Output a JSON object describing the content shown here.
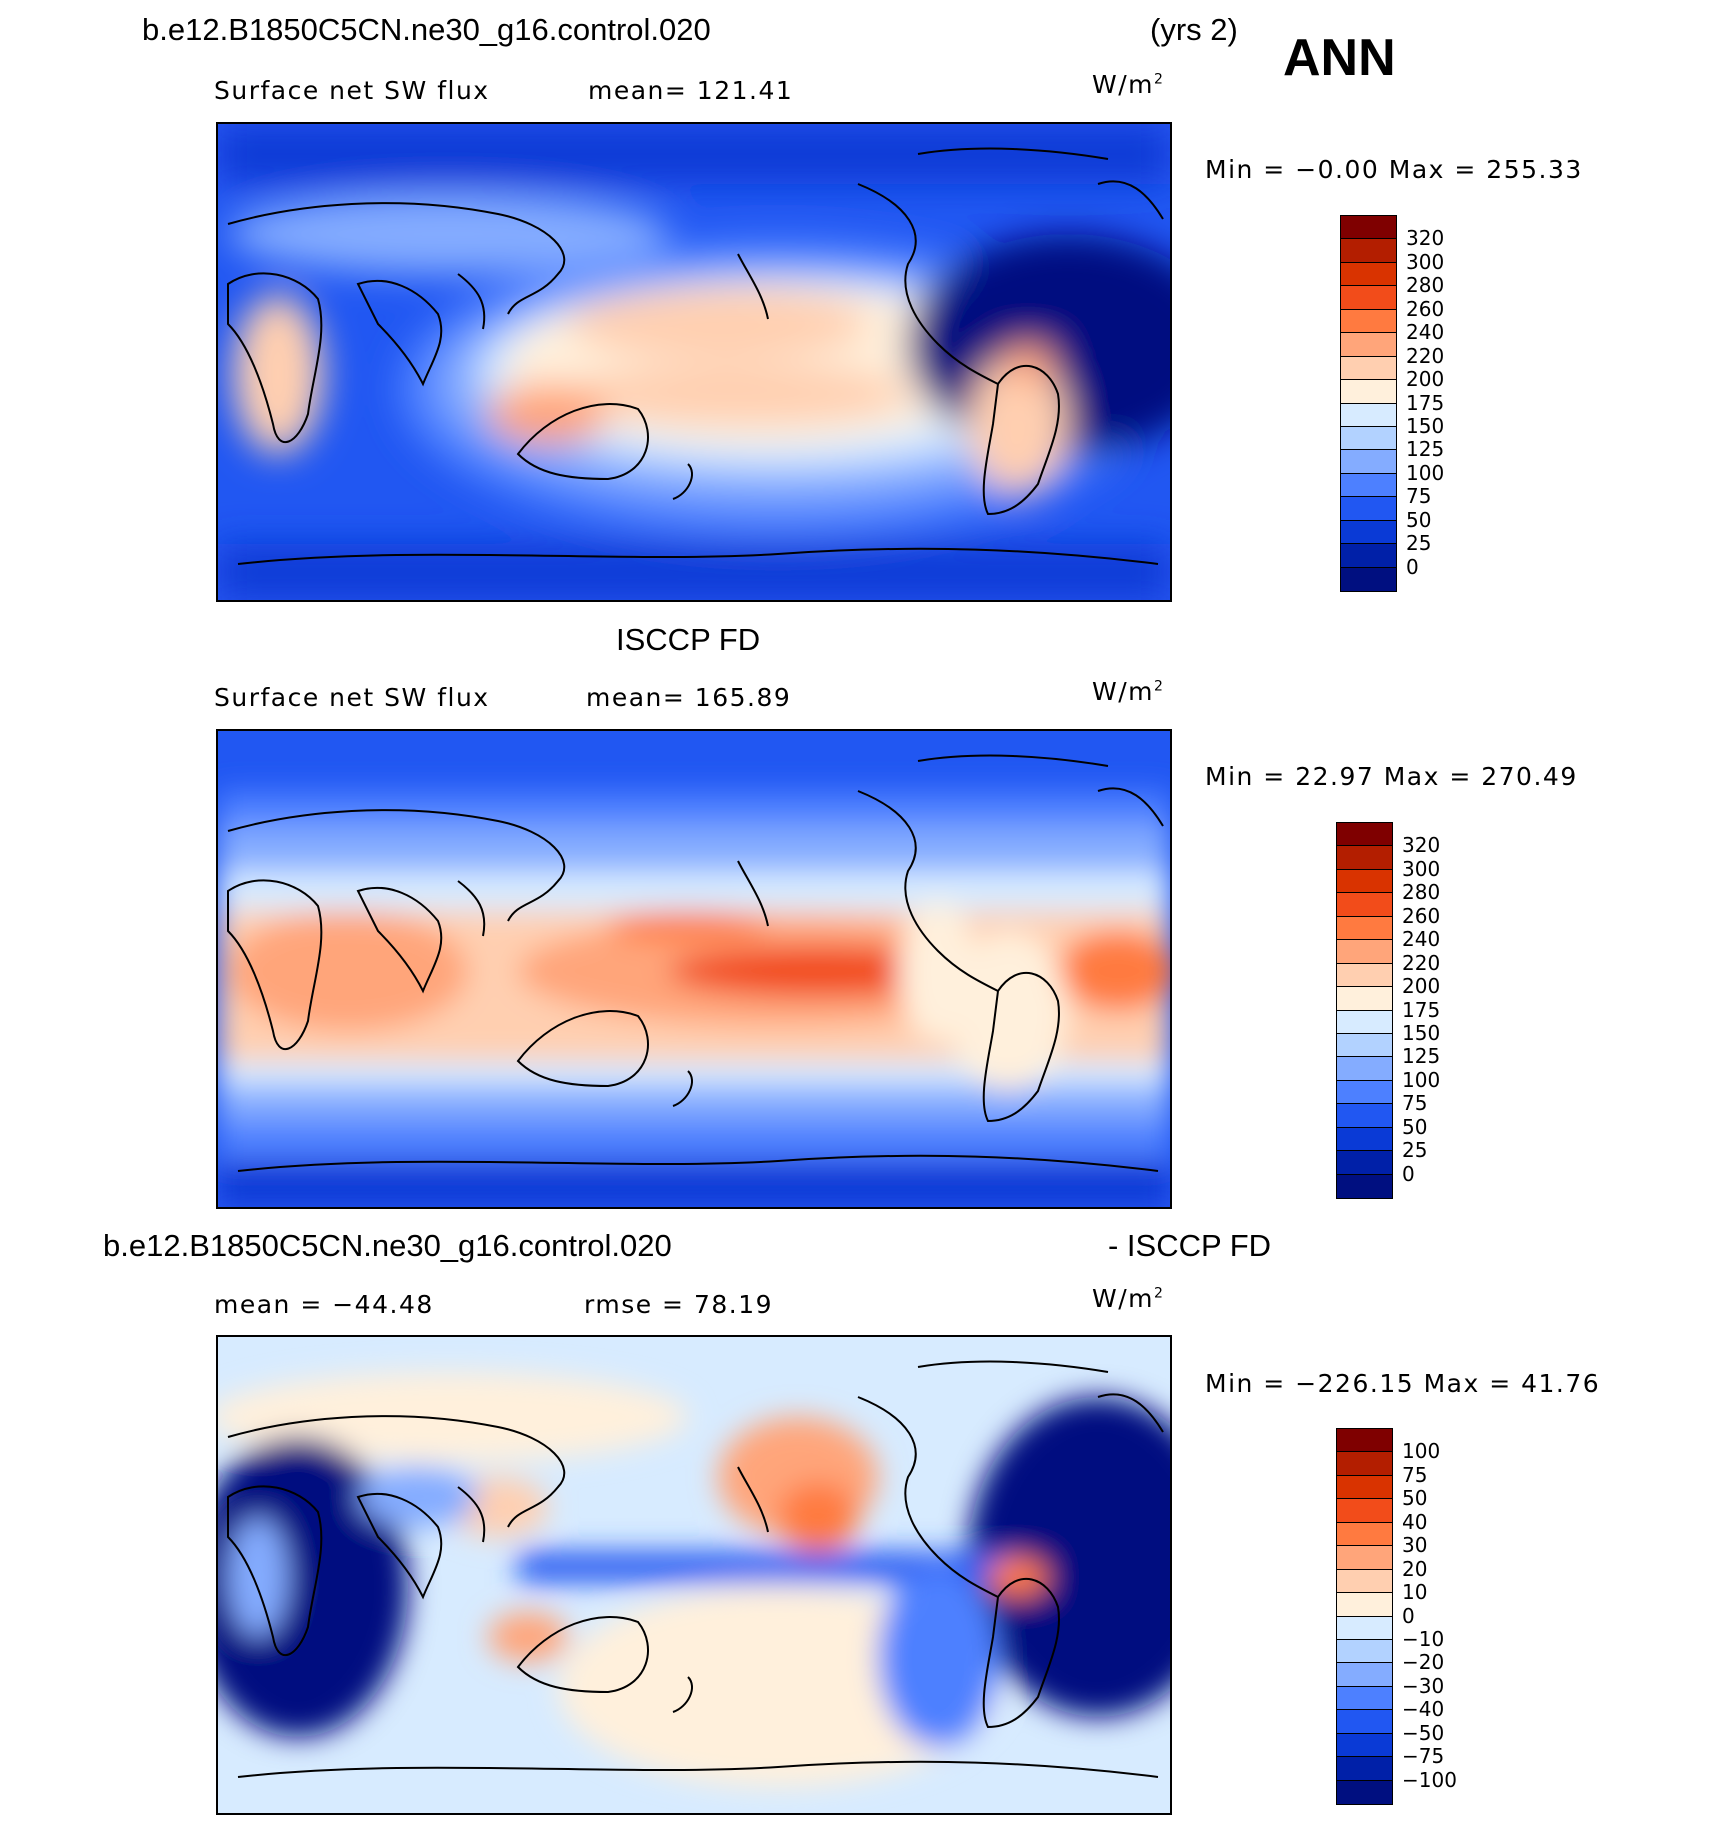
{
  "header": {
    "case_name": "b.e12.B1850C5CN.ne30_g16.control.020",
    "years": "(yrs 2)",
    "season": "ANN"
  },
  "panels": [
    {
      "id": "model",
      "title": "",
      "variable": "Surface net SW flux",
      "stat_left": "mean= 121.41",
      "stat_right": "",
      "units": "W/m",
      "units_sup": "2",
      "minmax": "Min =  −0.00 Max = 255.33",
      "colorbar_labels": [
        "320",
        "300",
        "280",
        "260",
        "240",
        "220",
        "200",
        "175",
        "150",
        "125",
        "100",
        "75",
        "50",
        "25",
        "0"
      ],
      "colors": [
        "#7f0000",
        "#b31e00",
        "#d93300",
        "#f24c1a",
        "#ff7a40",
        "#ffa57a",
        "#ffcfb0",
        "#fff0dc",
        "#d7ebff",
        "#b2d2ff",
        "#84acff",
        "#4d80ff",
        "#2157f2",
        "#0a3ad6",
        "#0020a8",
        "#000f80"
      ]
    },
    {
      "id": "obs",
      "title": "ISCCP FD",
      "variable": "Surface net SW flux",
      "stat_left": "mean= 165.89",
      "stat_right": "",
      "units": "W/m",
      "units_sup": "2",
      "minmax": "Min =  22.97 Max = 270.49",
      "colorbar_labels": [
        "320",
        "300",
        "280",
        "260",
        "240",
        "220",
        "200",
        "175",
        "150",
        "125",
        "100",
        "75",
        "50",
        "25",
        "0"
      ],
      "colors": [
        "#7f0000",
        "#b31e00",
        "#d93300",
        "#f24c1a",
        "#ff7a40",
        "#ffa57a",
        "#ffcfb0",
        "#fff0dc",
        "#d7ebff",
        "#b2d2ff",
        "#84acff",
        "#4d80ff",
        "#2157f2",
        "#0a3ad6",
        "#0020a8",
        "#000f80"
      ]
    },
    {
      "id": "diff",
      "title_left": "b.e12.B1850C5CN.ne30_g16.control.020",
      "title_right": "- ISCCP FD",
      "stat_left": "mean = −44.48",
      "stat_right": "rmse =  78.19",
      "units": "W/m",
      "units_sup": "2",
      "minmax": "Min = −226.15 Max =  41.76",
      "colorbar_labels": [
        "100",
        "75",
        "50",
        "40",
        "30",
        "20",
        "10",
        "0",
        "−10",
        "−20",
        "−30",
        "−40",
        "−50",
        "−75",
        "−100"
      ],
      "colors": [
        "#7f0000",
        "#b31e00",
        "#d93300",
        "#f24c1a",
        "#ff7a40",
        "#ffa57a",
        "#ffcfb0",
        "#fff0dc",
        "#d7ebff",
        "#b2d2ff",
        "#84acff",
        "#4d80ff",
        "#2157f2",
        "#0a3ad6",
        "#0020a8",
        "#000f80"
      ]
    }
  ]
}
